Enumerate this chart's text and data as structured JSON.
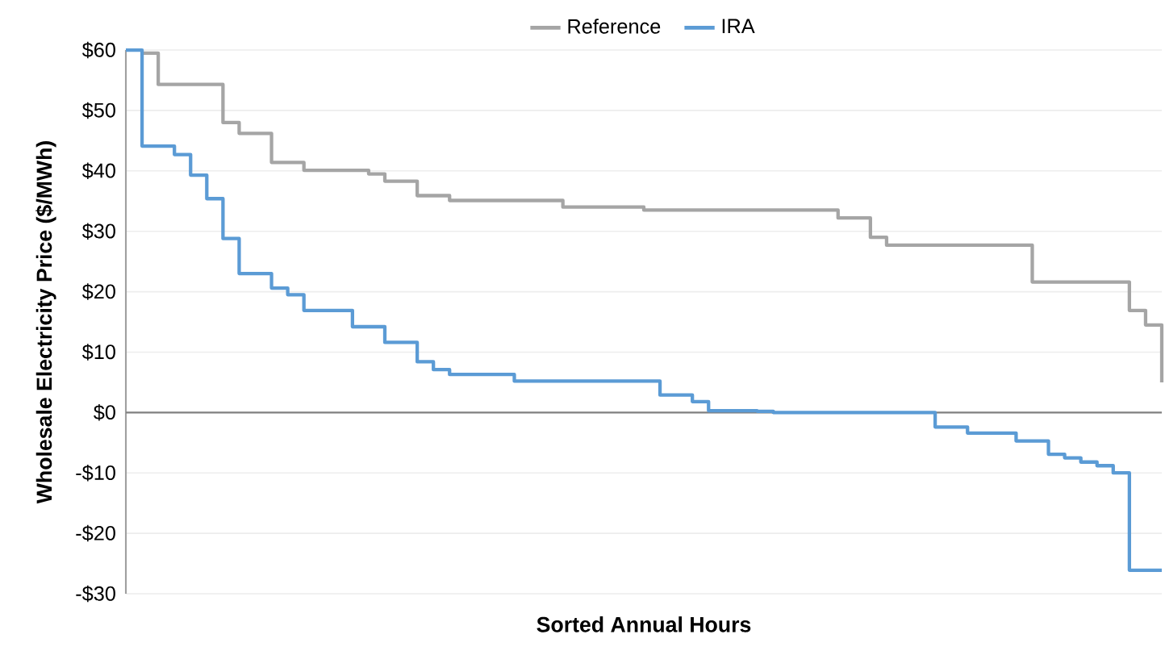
{
  "chart_data": {
    "type": "step",
    "xlabel": "Sorted Annual Hours",
    "ylabel": "Wholesale Electricity Price ($/MWh)",
    "categories": [
      null,
      null,
      null,
      null,
      null,
      null,
      null,
      null,
      null,
      null,
      null,
      null,
      null,
      null,
      null,
      null,
      null,
      null,
      null,
      null,
      null,
      null,
      null,
      null,
      null,
      null,
      null,
      null,
      null,
      null,
      null,
      null,
      null,
      null,
      null,
      null,
      null,
      null,
      null,
      null,
      null,
      null,
      null,
      null,
      null,
      null,
      null,
      null,
      null,
      null,
      null,
      null,
      null,
      null,
      null,
      null,
      null,
      null,
      null,
      null,
      null,
      null,
      null,
      null,
      null
    ],
    "series": [
      {
        "name": "Reference",
        "color": "#a5a5a5",
        "values": [
          null,
          59.5,
          54.3,
          54.3,
          54.3,
          54.3,
          48,
          46.2,
          46.2,
          41.4,
          41.4,
          40.1,
          40.1,
          40.1,
          40.1,
          39.5,
          38.3,
          38.3,
          35.9,
          35.9,
          35.1,
          35.1,
          35.1,
          35.1,
          35.1,
          35.1,
          35.1,
          34.0,
          34.0,
          34.0,
          34.0,
          34.0,
          33.5,
          33.5,
          33.5,
          33.5,
          33.5,
          33.5,
          33.5,
          33.5,
          33.5,
          33.5,
          33.5,
          33.5,
          32.2,
          32.2,
          29.0,
          27.7,
          27.7,
          27.7,
          27.7,
          27.7,
          27.7,
          27.7,
          27.7,
          27.7,
          21.6,
          21.6,
          21.6,
          21.6,
          21.6,
          21.6,
          16.9,
          14.5,
          5.0
        ]
      },
      {
        "name": "IRA",
        "color": "#5b9bd5",
        "values": [
          60,
          44.1,
          44.1,
          42.7,
          39.3,
          35.4,
          28.8,
          23.0,
          23.0,
          20.6,
          19.5,
          16.9,
          16.9,
          16.9,
          14.2,
          14.2,
          11.6,
          11.6,
          8.4,
          7.1,
          6.3,
          6.3,
          6.3,
          6.3,
          5.2,
          5.2,
          5.2,
          5.2,
          5.2,
          5.2,
          5.2,
          5.2,
          5.2,
          2.9,
          2.9,
          1.8,
          0.3,
          0.3,
          0.3,
          0.2,
          0.0,
          0.0,
          0.0,
          0.0,
          0.0,
          0.0,
          0.0,
          0.0,
          0.0,
          0.0,
          -2.4,
          -2.4,
          -3.4,
          -3.4,
          -3.4,
          -4.7,
          -4.7,
          -6.9,
          -7.5,
          -8.2,
          -8.8,
          -10.0,
          -26.1,
          -26.1,
          -26.1
        ]
      }
    ],
    "ylim": [
      -30,
      60
    ],
    "yticks": [
      {
        "value": -30,
        "label": "-$30"
      },
      {
        "value": -20,
        "label": "-$20"
      },
      {
        "value": -10,
        "label": "-$10"
      },
      {
        "value": 0,
        "label": "$0"
      },
      {
        "value": 10,
        "label": "$10"
      },
      {
        "value": 20,
        "label": "$20"
      },
      {
        "value": 30,
        "label": "$30"
      },
      {
        "value": 40,
        "label": "$40"
      },
      {
        "value": 50,
        "label": "$50"
      },
      {
        "value": 60,
        "label": "$60"
      }
    ],
    "ref_lines": [
      {
        "axis": "y",
        "value": 0,
        "color": "#808080"
      }
    ],
    "grid": "y",
    "legend": "top",
    "tick_labels": "y"
  }
}
